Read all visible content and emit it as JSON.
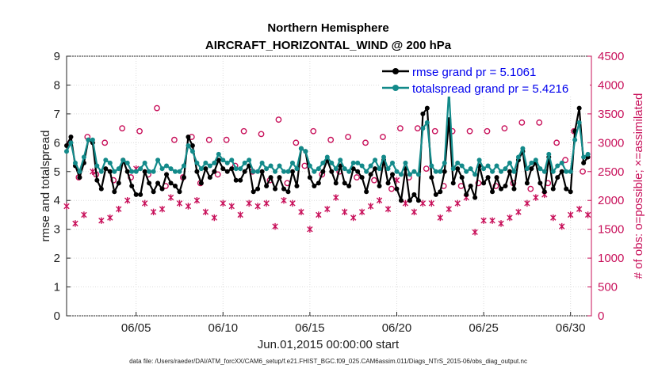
{
  "chart_data": {
    "type": "line",
    "title": "Northern Hemisphere",
    "subtitle": "AIRCRAFT_HORIZONTAL_WIND @ 200 hPa",
    "xlabel": "Jun.01,2015 00:00:00 start",
    "ylabel": "rmse and totalspread",
    "y2label": "# of obs: o=possible; ×=assimilated",
    "footnote": "data file: /Users/raeder/DAI/ATM_forcXX/CAM6_setup/f.e21.FHIST_BGC.f09_025.CAM6assim.011/Diags_NTrS_2015-06/obs_diag_output.nc",
    "xlim": [
      1.0,
      31.2
    ],
    "ylim": [
      0,
      9
    ],
    "y2lim": [
      0,
      4500
    ],
    "xticks": [
      {
        "value": 5,
        "label": "06/05"
      },
      {
        "value": 10,
        "label": "06/10"
      },
      {
        "value": 15,
        "label": "06/15"
      },
      {
        "value": 20,
        "label": "06/20"
      },
      {
        "value": 25,
        "label": "06/25"
      },
      {
        "value": 30,
        "label": "06/30"
      }
    ],
    "yticks": [
      0,
      1,
      2,
      3,
      4,
      5,
      6,
      7,
      8,
      9
    ],
    "y2ticks": [
      0,
      500,
      1000,
      1500,
      2000,
      2500,
      3000,
      3500,
      4000,
      4500
    ],
    "legend": [
      {
        "name": "rmse grand pr = 5.1061",
        "color": "#000000"
      },
      {
        "name": "totalspread grand pr = 5.4216",
        "color": "#138a8a"
      }
    ],
    "legend_position": "top-right",
    "x": [
      1.0,
      1.25,
      1.5,
      1.75,
      2.0,
      2.25,
      2.5,
      2.75,
      3.0,
      3.25,
      3.5,
      3.75,
      4.0,
      4.25,
      4.5,
      4.75,
      5.0,
      5.25,
      5.5,
      5.75,
      6.0,
      6.25,
      6.5,
      6.75,
      7.0,
      7.25,
      7.5,
      7.75,
      8.0,
      8.25,
      8.5,
      8.75,
      9.0,
      9.25,
      9.5,
      9.75,
      10.0,
      10.25,
      10.5,
      10.75,
      11.0,
      11.25,
      11.5,
      11.75,
      12.0,
      12.25,
      12.5,
      12.75,
      13.0,
      13.25,
      13.5,
      13.75,
      14.0,
      14.25,
      14.5,
      14.75,
      15.0,
      15.25,
      15.5,
      15.75,
      16.0,
      16.25,
      16.5,
      16.75,
      17.0,
      17.25,
      17.5,
      17.75,
      18.0,
      18.25,
      18.5,
      18.75,
      19.0,
      19.25,
      19.5,
      19.75,
      20.0,
      20.25,
      20.5,
      20.75,
      21.0,
      21.25,
      21.5,
      21.75,
      22.0,
      22.25,
      22.5,
      22.75,
      23.0,
      23.25,
      23.5,
      23.75,
      24.0,
      24.25,
      24.5,
      24.75,
      25.0,
      25.25,
      25.5,
      25.75,
      26.0,
      26.25,
      26.5,
      26.75,
      27.0,
      27.25,
      27.5,
      27.75,
      28.0,
      28.25,
      28.5,
      28.75,
      29.0,
      29.25,
      29.5,
      29.75,
      30.0,
      30.25,
      30.5,
      30.75,
      31.0
    ],
    "series": [
      {
        "name": "rmse",
        "color": "#000000",
        "axis": "left",
        "values": [
          5.9,
          6.2,
          5.2,
          4.8,
          5.3,
          6.1,
          6.0,
          4.7,
          4.4,
          5.1,
          5.0,
          4.3,
          4.6,
          5.4,
          5.0,
          4.5,
          4.2,
          4.2,
          5.0,
          4.6,
          4.3,
          4.6,
          4.4,
          4.9,
          4.6,
          4.5,
          4.3,
          4.8,
          6.2,
          5.9,
          5.0,
          4.6,
          5.1,
          4.8,
          5.0,
          5.4,
          5.1,
          5.0,
          5.1,
          4.7,
          4.7,
          5.0,
          5.2,
          4.3,
          4.4,
          5.0,
          4.5,
          4.8,
          4.4,
          4.8,
          4.4,
          4.3,
          5.0,
          4.5,
          5.8,
          5.7,
          4.8,
          4.5,
          4.6,
          5.0,
          5.4,
          5.0,
          4.6,
          5.2,
          4.6,
          4.5,
          5.1,
          5.0,
          4.8,
          4.3,
          4.9,
          5.1,
          4.5,
          5.4,
          4.6,
          4.9,
          4.4,
          4.0,
          5.1,
          4.0,
          4.2,
          4.0,
          7.0,
          7.2,
          4.8,
          4.2,
          4.3,
          5.0,
          6.8,
          4.6,
          5.1,
          4.8,
          4.2,
          4.5,
          4.1,
          5.2,
          4.6,
          4.8,
          4.3,
          4.8,
          4.4,
          4.5,
          5.0,
          4.4,
          5.4,
          5.7,
          4.6,
          5.1,
          5.3,
          4.6,
          4.3,
          5.5,
          4.4,
          4.8,
          5.0,
          4.4,
          4.3,
          6.4,
          7.2,
          5.3,
          5.5
        ]
      },
      {
        "name": "totalspread",
        "color": "#138a8a",
        "axis": "left",
        "values": [
          5.7,
          6.0,
          5.3,
          5.0,
          5.5,
          6.1,
          6.1,
          5.2,
          5.0,
          5.4,
          5.3,
          5.0,
          5.1,
          5.4,
          5.3,
          5.0,
          5.0,
          5.1,
          5.3,
          5.0,
          5.0,
          5.4,
          5.1,
          5.2,
          5.1,
          5.0,
          5.0,
          5.2,
          5.9,
          5.7,
          5.3,
          5.1,
          5.3,
          5.2,
          5.3,
          5.6,
          5.4,
          5.3,
          5.4,
          5.1,
          5.1,
          5.3,
          5.4,
          5.0,
          5.0,
          5.3,
          5.1,
          5.2,
          5.0,
          5.2,
          5.0,
          5.0,
          5.3,
          5.1,
          5.8,
          5.7,
          5.2,
          5.0,
          5.1,
          5.3,
          5.5,
          5.3,
          5.1,
          5.4,
          5.1,
          5.0,
          5.3,
          5.3,
          5.2,
          5.0,
          5.2,
          5.4,
          5.1,
          5.5,
          5.1,
          5.3,
          5.0,
          4.9,
          5.3,
          4.9,
          5.0,
          4.9,
          6.5,
          6.7,
          5.2,
          5.0,
          5.0,
          5.3,
          7.8,
          5.1,
          5.3,
          5.2,
          5.0,
          5.1,
          4.9,
          5.4,
          5.1,
          5.2,
          5.0,
          5.2,
          5.0,
          5.1,
          5.3,
          5.0,
          5.5,
          5.8,
          5.1,
          5.3,
          5.4,
          5.1,
          5.0,
          5.6,
          5.0,
          5.2,
          5.3,
          5.0,
          5.0,
          6.1,
          6.7,
          5.5,
          5.6
        ]
      }
    ],
    "obs_possible": {
      "axis": "right",
      "marker": "o",
      "color": "#c8105a",
      "x": [
        1.2,
        1.7,
        2.2,
        2.7,
        3.2,
        3.7,
        4.2,
        4.7,
        5.2,
        5.7,
        6.2,
        6.7,
        7.2,
        7.7,
        8.2,
        8.7,
        9.2,
        9.7,
        10.2,
        10.7,
        11.2,
        11.7,
        12.2,
        12.7,
        13.2,
        13.7,
        14.2,
        14.7,
        15.2,
        15.7,
        16.2,
        16.7,
        17.2,
        17.7,
        18.2,
        18.7,
        19.2,
        19.7,
        20.2,
        20.7,
        21.2,
        21.7,
        22.2,
        22.7,
        23.2,
        23.7,
        24.2,
        24.7,
        25.2,
        25.7,
        26.2,
        26.7,
        27.2,
        27.7,
        28.2,
        28.7,
        29.2,
        29.7,
        30.2,
        30.7
      ],
      "values": [
        3000,
        2400,
        3100,
        2450,
        3000,
        2350,
        3250,
        2400,
        3200,
        2450,
        3600,
        2250,
        3050,
        2400,
        3100,
        2300,
        3050,
        2450,
        3050,
        2600,
        3200,
        2500,
        3150,
        2350,
        3400,
        2300,
        3000,
        2600,
        3200,
        2450,
        3050,
        2500,
        3100,
        2400,
        3000,
        2350,
        3100,
        2200,
        3250,
        2400,
        3250,
        2550,
        3200,
        2250,
        3200,
        2250,
        3200,
        2300,
        3200,
        2250,
        3250,
        2300,
        3350,
        2200,
        3350,
        2300,
        3000,
        2700,
        3200,
        2500
      ]
    },
    "obs_assimilated": {
      "axis": "right",
      "marker": "x",
      "color": "#c8105a",
      "x": [
        1.0,
        1.5,
        2.0,
        2.5,
        3.0,
        3.5,
        4.0,
        4.5,
        5.0,
        5.5,
        6.0,
        6.5,
        7.0,
        7.5,
        8.0,
        8.5,
        9.0,
        9.5,
        10.0,
        10.5,
        11.0,
        11.5,
        12.0,
        12.5,
        13.0,
        13.5,
        14.0,
        14.5,
        15.0,
        15.5,
        16.0,
        16.5,
        17.0,
        17.5,
        18.0,
        18.5,
        19.0,
        19.5,
        20.0,
        20.5,
        21.0,
        21.5,
        22.0,
        22.5,
        23.0,
        23.5,
        24.0,
        24.5,
        25.0,
        25.5,
        26.0,
        26.5,
        27.0,
        27.5,
        28.0,
        28.5,
        29.0,
        29.5,
        30.0,
        30.5,
        31.0
      ],
      "values": [
        1900,
        1600,
        1750,
        2500,
        1650,
        1700,
        1850,
        2000,
        2550,
        1950,
        1800,
        1850,
        2050,
        1950,
        1900,
        2000,
        1800,
        1700,
        1950,
        1900,
        1750,
        1950,
        1900,
        1950,
        1550,
        2000,
        1950,
        1800,
        1500,
        1750,
        1850,
        2050,
        1800,
        1700,
        1800,
        1900,
        2000,
        1850,
        2350,
        1950,
        1800,
        1950,
        1950,
        1700,
        1850,
        1950,
        2050,
        1450,
        1650,
        1650,
        1600,
        1700,
        1800,
        1950,
        2050,
        2100,
        1700,
        1550,
        1750,
        1850,
        1750
      ]
    }
  }
}
